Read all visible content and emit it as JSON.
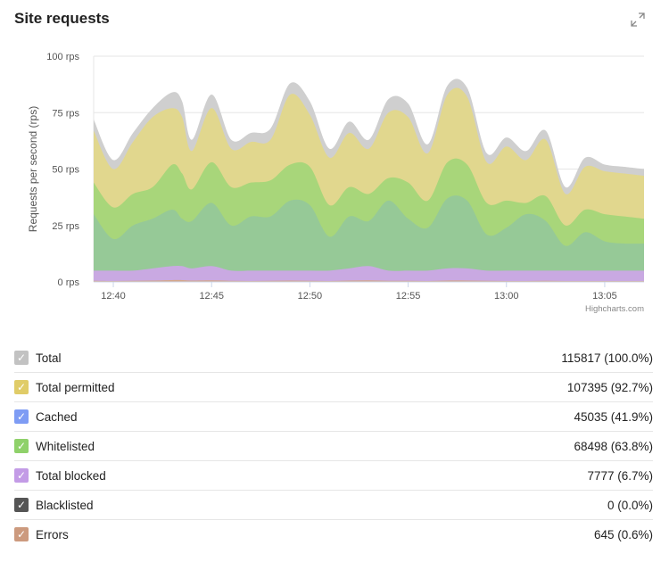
{
  "card": {
    "title": "Site requests"
  },
  "chart_data": {
    "type": "area",
    "stacked": false,
    "ylabel": "Requests per second (rps)",
    "ylim": [
      0,
      100
    ],
    "y_ticks": [
      0,
      25,
      50,
      75,
      100
    ],
    "y_tick_labels": [
      "0 rps",
      "25 rps",
      "50 rps",
      "75 rps",
      "100 rps"
    ],
    "xlim": [
      39,
      67
    ],
    "x_ticks": [
      40,
      45,
      50,
      55,
      60,
      65
    ],
    "x_tick_labels": [
      "12:40",
      "12:45",
      "12:50",
      "12:55",
      "13:00",
      "13:05"
    ],
    "credits": "Highcharts.com",
    "x": [
      39,
      40,
      41,
      42,
      43,
      43.5,
      44,
      45,
      46,
      47,
      48,
      49,
      50,
      51,
      52,
      53,
      54,
      55,
      56,
      57,
      58,
      59,
      60,
      61,
      62,
      63,
      64,
      65,
      66,
      67
    ],
    "series": [
      {
        "name": "Total",
        "color": "#cfcfcf",
        "values": [
          72,
          54,
          66,
          77,
          84,
          80,
          63,
          83,
          63,
          66,
          68,
          88,
          80,
          59,
          71,
          63,
          81,
          79,
          61,
          87,
          86,
          57,
          64,
          58,
          67,
          42,
          55,
          52,
          51,
          50
        ]
      },
      {
        "name": "Total permitted",
        "color": "#e1d78e",
        "values": [
          67,
          50,
          62,
          73,
          77,
          73,
          58,
          77,
          59,
          62,
          63,
          83,
          74,
          55,
          66,
          59,
          75,
          73,
          57,
          83,
          82,
          53,
          60,
          54,
          63,
          39,
          51,
          49,
          48,
          47
        ]
      },
      {
        "name": "Whitelisted",
        "color": "#a8d67a",
        "values": [
          44,
          33,
          39,
          42,
          52,
          48,
          41,
          53,
          42,
          44,
          45,
          52,
          51,
          34,
          42,
          39,
          46,
          44,
          36,
          53,
          52,
          35,
          36,
          35,
          38,
          25,
          32,
          30,
          29,
          28
        ]
      },
      {
        "name": "Cached",
        "color": "#96c997",
        "values": [
          30,
          19,
          25,
          28,
          32,
          28,
          27,
          35,
          25,
          29,
          29,
          36,
          34,
          20,
          29,
          27,
          36,
          28,
          24,
          37,
          36,
          21,
          24,
          30,
          27,
          16,
          22,
          18,
          17,
          17
        ]
      },
      {
        "name": "Total blocked",
        "color": "#c9a9e2",
        "values": [
          5,
          5,
          5,
          6,
          7,
          7,
          6,
          7,
          5,
          5,
          5,
          5,
          5,
          5,
          6,
          7,
          5,
          5,
          5,
          6,
          6,
          5,
          5,
          5,
          5,
          5,
          5,
          5,
          5,
          5
        ]
      },
      {
        "name": "Errors",
        "color": "#d4a88a",
        "values": [
          0.5,
          0.4,
          0.5,
          0.6,
          0.8,
          0.8,
          0.6,
          0.7,
          0.5,
          0.4,
          0.5,
          0.6,
          0.5,
          0.4,
          0.6,
          0.7,
          0.5,
          0.5,
          0.4,
          0.6,
          0.6,
          0.5,
          0.4,
          0.4,
          0.5,
          0.4,
          0.4,
          0.4,
          0.4,
          0.4
        ]
      }
    ]
  },
  "legend": [
    {
      "label": "Total",
      "value": "115817 (100.0%)",
      "color": "#c2c2c2"
    },
    {
      "label": "Total permitted",
      "value": "107395 (92.7%)",
      "color": "#e0cc68"
    },
    {
      "label": "Cached",
      "value": "45035 (41.9%)",
      "color": "#7e9cf4"
    },
    {
      "label": "Whitelisted",
      "value": "68498 (63.8%)",
      "color": "#8fd16a"
    },
    {
      "label": "Total blocked",
      "value": "7777 (6.7%)",
      "color": "#c39be6"
    },
    {
      "label": "Blacklisted",
      "value": "0 (0.0%)",
      "color": "#555555"
    },
    {
      "label": "Errors",
      "value": "645 (0.6%)",
      "color": "#cc9a7e"
    }
  ]
}
